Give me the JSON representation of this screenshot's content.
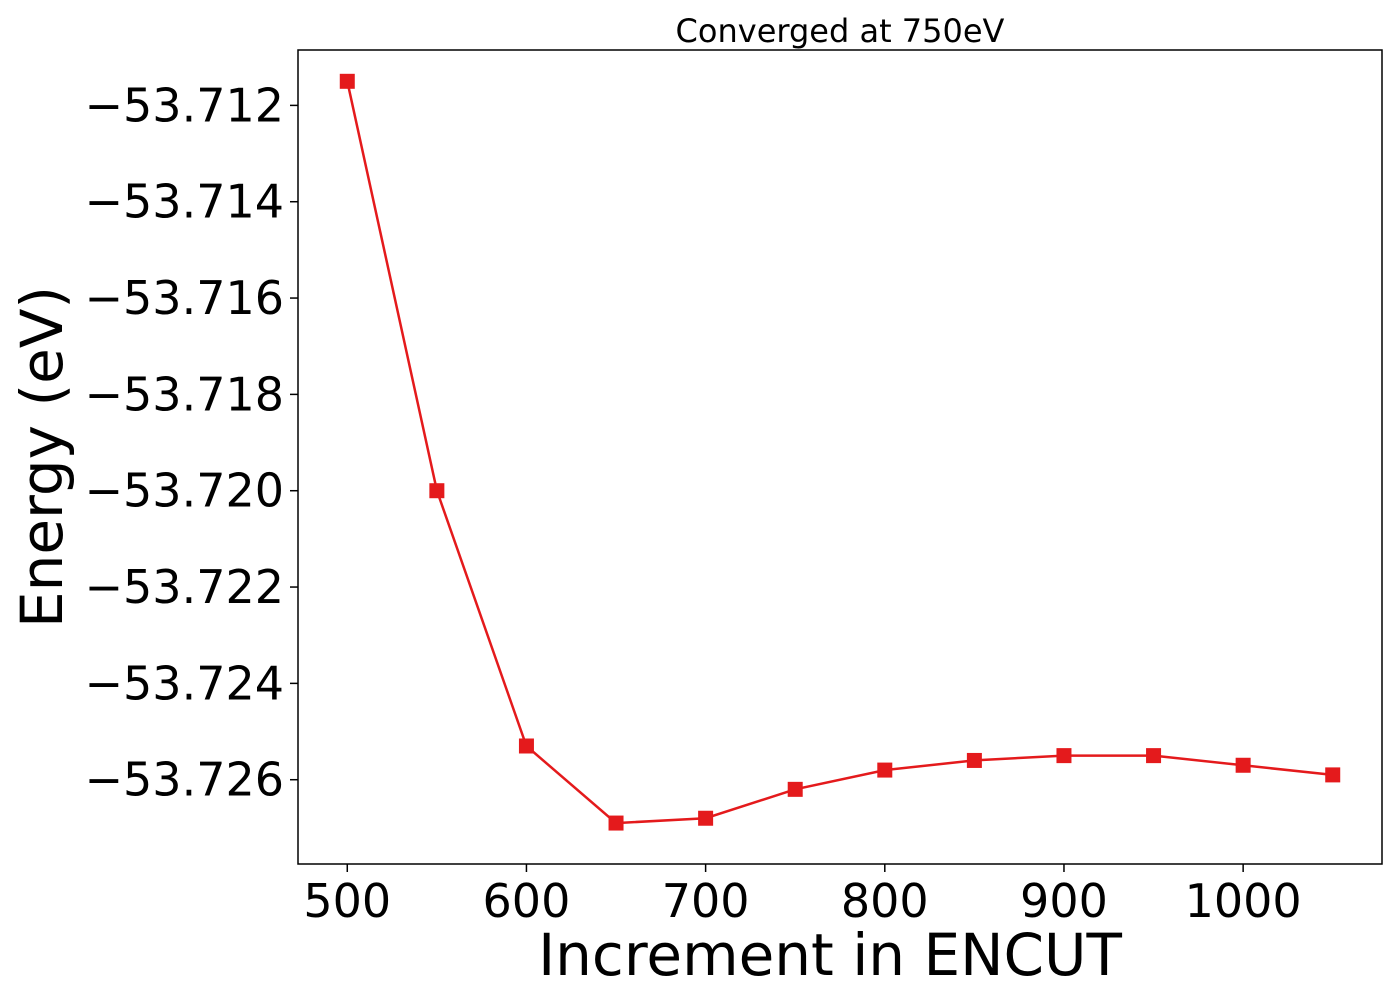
{
  "chart_data": {
    "type": "line",
    "title": "Converged at 750eV",
    "xlabel": "Increment in ENCUT",
    "ylabel": "Energy (eV)",
    "xlim": [
      472.5,
      1077.5
    ],
    "ylim": [
      -53.72775,
      -53.71085
    ],
    "xticks": [
      500,
      600,
      700,
      800,
      900,
      1000
    ],
    "xtick_labels": [
      "500",
      "600",
      "700",
      "800",
      "900",
      "1000"
    ],
    "yticks": [
      -53.712,
      -53.714,
      -53.716,
      -53.718,
      -53.72,
      -53.722,
      -53.724,
      -53.726
    ],
    "ytick_labels": [
      "−53.712",
      "−53.714",
      "−53.716",
      "−53.718",
      "−53.720",
      "−53.722",
      "−53.724",
      "−53.726"
    ],
    "grid": false,
    "series": [
      {
        "color": "#e41a1c",
        "marker": "square",
        "x": [
          500,
          550,
          600,
          650,
          700,
          750,
          800,
          850,
          900,
          950,
          1000,
          1050
        ],
        "y": [
          -53.7115,
          -53.72,
          -53.7253,
          -53.7269,
          -53.7268,
          -53.7262,
          -53.7258,
          -53.7256,
          -53.7255,
          -53.7255,
          -53.7257,
          -53.7259
        ]
      }
    ]
  }
}
